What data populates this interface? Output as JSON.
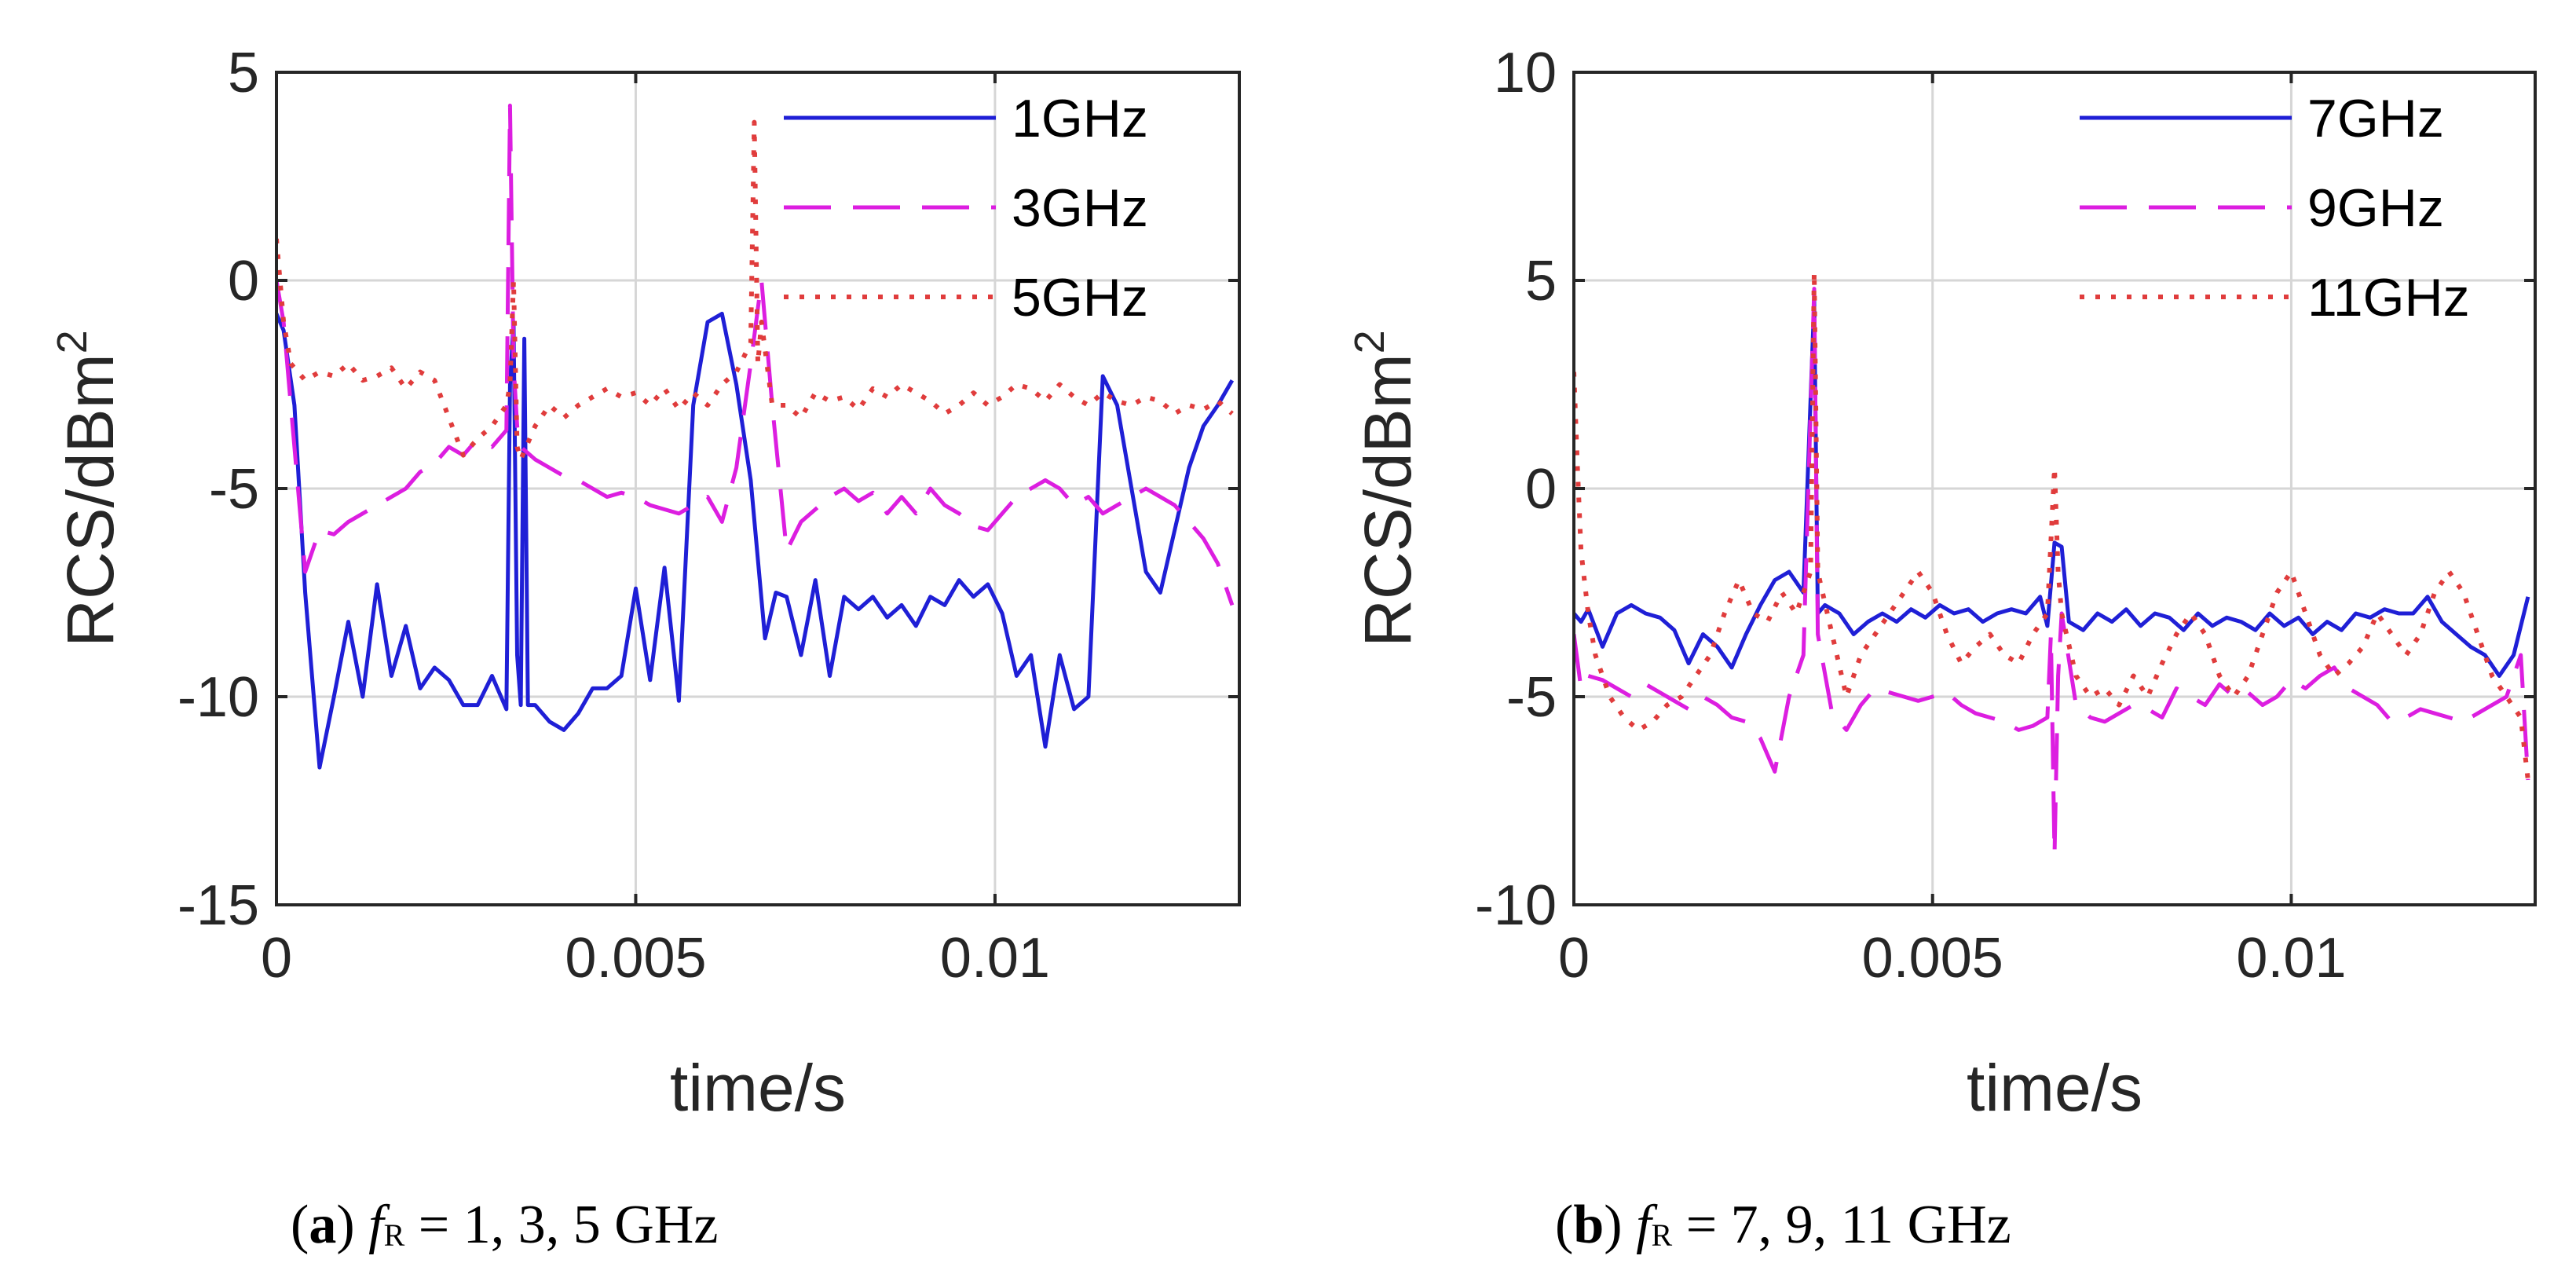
{
  "chart_data": [
    {
      "type": "line",
      "panel": "a",
      "xlabel": "time/s",
      "ylabel": "RCS/dBm",
      "ylabel_sup": "2",
      "xlim": [
        0,
        0.0134
      ],
      "ylim": [
        -15,
        5
      ],
      "xticks": [
        0,
        0.005,
        0.01
      ],
      "xtick_labels": [
        "0",
        "0.005",
        "0.01"
      ],
      "yticks": [
        -15,
        -10,
        -5,
        0,
        5
      ],
      "ytick_labels": [
        "-15",
        "-10",
        "-5",
        "0",
        "5"
      ],
      "grid": true,
      "legend_position": "top-right",
      "series": [
        {
          "name": "1GHz",
          "color": "#1f1fd6",
          "dash": "solid",
          "x": [
            0,
            0.0001,
            0.00025,
            0.0004,
            0.0006,
            0.0008,
            0.001,
            0.0012,
            0.0014,
            0.0016,
            0.0018,
            0.002,
            0.0022,
            0.0024,
            0.0026,
            0.0028,
            0.003,
            0.0032,
            0.00325,
            0.0033,
            0.00335,
            0.0034,
            0.00345,
            0.0035,
            0.0036,
            0.0038,
            0.004,
            0.0042,
            0.0044,
            0.0046,
            0.0048,
            0.005,
            0.0052,
            0.0054,
            0.0056,
            0.0058,
            0.006,
            0.0062,
            0.0064,
            0.0066,
            0.0068,
            0.00695,
            0.0071,
            0.0073,
            0.0075,
            0.0077,
            0.0079,
            0.0081,
            0.0083,
            0.0085,
            0.0087,
            0.0089,
            0.0091,
            0.0093,
            0.0095,
            0.0097,
            0.0099,
            0.0101,
            0.0103,
            0.0105,
            0.0107,
            0.0109,
            0.0111,
            0.0113,
            0.0115,
            0.0117,
            0.0119,
            0.0121,
            0.0123,
            0.0125,
            0.0127,
            0.0129,
            0.0131,
            0.0133
          ],
          "y": [
            -0.8,
            -1.2,
            -3.0,
            -7.5,
            -11.7,
            -10.0,
            -8.2,
            -10.0,
            -7.3,
            -9.5,
            -8.3,
            -9.8,
            -9.3,
            -9.6,
            -10.2,
            -10.2,
            -9.5,
            -10.3,
            -2.5,
            -1.0,
            -9.0,
            -10.2,
            -1.4,
            -10.2,
            -10.2,
            -10.6,
            -10.8,
            -10.4,
            -9.8,
            -9.8,
            -9.5,
            -7.4,
            -9.6,
            -6.9,
            -10.1,
            -3.0,
            -1.0,
            -0.8,
            -2.5,
            -4.8,
            -8.6,
            -7.5,
            -7.6,
            -9.0,
            -7.2,
            -9.5,
            -7.6,
            -7.9,
            -7.6,
            -8.1,
            -7.8,
            -8.3,
            -7.6,
            -7.8,
            -7.2,
            -7.6,
            -7.3,
            -8.0,
            -9.5,
            -9.0,
            -11.2,
            -9.0,
            -10.3,
            -10.0,
            -2.3,
            -3.0,
            -5.0,
            -7.0,
            -7.5,
            -6.0,
            -4.5,
            -3.5,
            -3.0,
            -2.4
          ]
        },
        {
          "name": "3GHz",
          "color": "#dc1ee0",
          "dash": "dashed",
          "x": [
            0,
            0.0001,
            0.0002,
            0.0004,
            0.0006,
            0.0008,
            0.001,
            0.0012,
            0.0014,
            0.0016,
            0.0018,
            0.002,
            0.0022,
            0.0024,
            0.0026,
            0.0028,
            0.003,
            0.0032,
            0.00325,
            0.0033,
            0.00335,
            0.0034,
            0.0036,
            0.0038,
            0.004,
            0.0042,
            0.0044,
            0.0046,
            0.0048,
            0.005,
            0.0052,
            0.0054,
            0.0056,
            0.0058,
            0.006,
            0.0062,
            0.0064,
            0.0066,
            0.00675,
            0.0069,
            0.0071,
            0.0073,
            0.0075,
            0.0077,
            0.0079,
            0.0081,
            0.0083,
            0.0085,
            0.0087,
            0.0089,
            0.0091,
            0.0093,
            0.0095,
            0.0097,
            0.0099,
            0.0101,
            0.0103,
            0.0105,
            0.0107,
            0.0109,
            0.0111,
            0.0113,
            0.0115,
            0.0117,
            0.0119,
            0.0121,
            0.0123,
            0.0125,
            0.0127,
            0.0129,
            0.0131,
            0.0133
          ],
          "y": [
            0.0,
            -1.0,
            -3.0,
            -7.0,
            -6.0,
            -6.1,
            -5.8,
            -5.6,
            -5.4,
            -5.2,
            -5.0,
            -4.6,
            -4.4,
            -4.0,
            -4.2,
            -3.8,
            -4.0,
            -3.6,
            4.2,
            -2.0,
            -3.5,
            -4.0,
            -4.3,
            -4.5,
            -4.7,
            -4.8,
            -5.0,
            -5.2,
            -5.1,
            -5.2,
            -5.4,
            -5.5,
            -5.6,
            -5.4,
            -5.2,
            -5.8,
            -4.5,
            -2.0,
            0.0,
            -3.0,
            -6.5,
            -5.8,
            -5.5,
            -5.2,
            -5.0,
            -5.3,
            -5.1,
            -5.6,
            -5.2,
            -5.6,
            -5.0,
            -5.4,
            -5.6,
            -5.9,
            -6.0,
            -5.6,
            -5.2,
            -5.0,
            -4.8,
            -5.0,
            -5.4,
            -5.2,
            -5.6,
            -5.4,
            -5.2,
            -5.0,
            -5.2,
            -5.4,
            -5.8,
            -6.2,
            -6.8,
            -7.8
          ]
        },
        {
          "name": "5GHz",
          "color": "#e03c3c",
          "dash": "dotted",
          "x": [
            0,
            0.0001,
            0.0002,
            0.0004,
            0.0006,
            0.0008,
            0.001,
            0.0012,
            0.0014,
            0.0016,
            0.0018,
            0.002,
            0.0022,
            0.0024,
            0.0026,
            0.0028,
            0.003,
            0.0032,
            0.00325,
            0.0033,
            0.00335,
            0.0034,
            0.0036,
            0.0038,
            0.004,
            0.0042,
            0.0044,
            0.0046,
            0.0048,
            0.005,
            0.0052,
            0.0054,
            0.0056,
            0.0058,
            0.006,
            0.0062,
            0.0064,
            0.0066,
            0.00665,
            0.0067,
            0.00675,
            0.0069,
            0.0071,
            0.0073,
            0.0075,
            0.0077,
            0.0079,
            0.0081,
            0.0083,
            0.0085,
            0.0087,
            0.0089,
            0.0091,
            0.0093,
            0.0095,
            0.0097,
            0.0099,
            0.0101,
            0.0103,
            0.0105,
            0.0107,
            0.0109,
            0.0111,
            0.0113,
            0.0115,
            0.0117,
            0.0119,
            0.0121,
            0.0123,
            0.0125,
            0.0127,
            0.0129,
            0.0131,
            0.0133
          ],
          "y": [
            1.0,
            -1.0,
            -2.0,
            -2.4,
            -2.2,
            -2.3,
            -2.0,
            -2.4,
            -2.3,
            -2.1,
            -2.6,
            -2.2,
            -2.4,
            -3.3,
            -4.2,
            -3.8,
            -3.5,
            -3.0,
            -2.5,
            0.0,
            -4.0,
            -4.3,
            -3.5,
            -3.0,
            -3.3,
            -3.0,
            -2.8,
            -2.6,
            -2.8,
            -2.7,
            -3.0,
            -2.6,
            -3.1,
            -2.7,
            -3.0,
            -2.5,
            -2.2,
            -1.5,
            3.8,
            -2.0,
            -1.0,
            -3.0,
            -3.0,
            -3.3,
            -2.7,
            -2.9,
            -2.8,
            -3.1,
            -2.6,
            -2.8,
            -2.5,
            -2.7,
            -2.9,
            -3.2,
            -3.0,
            -2.7,
            -3.0,
            -2.8,
            -2.5,
            -2.6,
            -2.9,
            -2.5,
            -2.8,
            -3.0,
            -2.7,
            -2.9,
            -3.0,
            -2.8,
            -2.9,
            -3.2,
            -3.0,
            -3.1,
            -2.9,
            -3.2
          ]
        }
      ]
    },
    {
      "type": "line",
      "panel": "b",
      "xlabel": "time/s",
      "ylabel": "RCS/dBm",
      "ylabel_sup": "2",
      "xlim": [
        0,
        0.0134
      ],
      "ylim": [
        -10,
        10
      ],
      "xticks": [
        0,
        0.005,
        0.01
      ],
      "xtick_labels": [
        "0",
        "0.005",
        "0.01"
      ],
      "yticks": [
        -10,
        -5,
        0,
        5,
        10
      ],
      "ytick_labels": [
        "-10",
        "-5",
        "0",
        "5",
        "10"
      ],
      "grid": true,
      "legend_position": "top-right",
      "series": [
        {
          "name": "7GHz",
          "color": "#1f1fd6",
          "dash": "solid",
          "x": [
            0,
            0.0001,
            0.0002,
            0.0004,
            0.0006,
            0.0008,
            0.001,
            0.0012,
            0.0014,
            0.0016,
            0.0018,
            0.002,
            0.0022,
            0.0024,
            0.0026,
            0.0028,
            0.003,
            0.0032,
            0.00335,
            0.0034,
            0.0035,
            0.0037,
            0.0039,
            0.0041,
            0.0043,
            0.0045,
            0.0047,
            0.0049,
            0.0051,
            0.0053,
            0.0055,
            0.0057,
            0.0059,
            0.0061,
            0.0063,
            0.0065,
            0.0066,
            0.0067,
            0.0068,
            0.0069,
            0.0071,
            0.0073,
            0.0075,
            0.0077,
            0.0079,
            0.0081,
            0.0083,
            0.0085,
            0.0087,
            0.0089,
            0.0091,
            0.0093,
            0.0095,
            0.0097,
            0.0099,
            0.0101,
            0.0103,
            0.0105,
            0.0107,
            0.0109,
            0.0111,
            0.0113,
            0.0115,
            0.0117,
            0.0119,
            0.0121,
            0.0123,
            0.0125,
            0.0127,
            0.0129,
            0.0131,
            0.0133
          ],
          "y": [
            -3.0,
            -3.2,
            -2.9,
            -3.8,
            -3.0,
            -2.8,
            -3.0,
            -3.1,
            -3.4,
            -4.2,
            -3.5,
            -3.8,
            -4.3,
            -3.5,
            -2.8,
            -2.2,
            -2.0,
            -2.5,
            4.5,
            -3.0,
            -2.8,
            -3.0,
            -3.5,
            -3.2,
            -3.0,
            -3.2,
            -2.9,
            -3.1,
            -2.8,
            -3.0,
            -2.9,
            -3.2,
            -3.0,
            -2.9,
            -3.0,
            -2.6,
            -3.3,
            -1.3,
            -1.4,
            -3.2,
            -3.4,
            -3.0,
            -3.2,
            -2.9,
            -3.3,
            -3.0,
            -3.1,
            -3.4,
            -3.0,
            -3.3,
            -3.1,
            -3.2,
            -3.4,
            -3.0,
            -3.3,
            -3.1,
            -3.5,
            -3.2,
            -3.4,
            -3.0,
            -3.1,
            -2.9,
            -3.0,
            -3.0,
            -2.6,
            -3.2,
            -3.5,
            -3.8,
            -4.0,
            -4.5,
            -4.0,
            -2.6
          ]
        },
        {
          "name": "9GHz",
          "color": "#dc1ee0",
          "dash": "dashed",
          "x": [
            0,
            0.0001,
            0.0002,
            0.0004,
            0.0006,
            0.0008,
            0.001,
            0.0012,
            0.0014,
            0.0016,
            0.0018,
            0.002,
            0.0022,
            0.0024,
            0.0026,
            0.0028,
            0.003,
            0.0032,
            0.00335,
            0.0034,
            0.0036,
            0.0038,
            0.004,
            0.0042,
            0.0044,
            0.0046,
            0.0048,
            0.005,
            0.0052,
            0.0054,
            0.0056,
            0.0058,
            0.006,
            0.0062,
            0.0064,
            0.0066,
            0.00665,
            0.0067,
            0.00675,
            0.0068,
            0.007,
            0.0072,
            0.0074,
            0.0076,
            0.0078,
            0.008,
            0.0082,
            0.0084,
            0.0086,
            0.0088,
            0.009,
            0.0092,
            0.0094,
            0.0096,
            0.0098,
            0.01,
            0.0102,
            0.0104,
            0.0106,
            0.0108,
            0.011,
            0.0112,
            0.0114,
            0.0116,
            0.0118,
            0.012,
            0.0122,
            0.0124,
            0.0126,
            0.0128,
            0.013,
            0.0132,
            0.0133
          ],
          "y": [
            -3.5,
            -4.8,
            -4.5,
            -4.6,
            -4.8,
            -5.0,
            -4.7,
            -4.9,
            -5.1,
            -5.3,
            -5.0,
            -5.2,
            -5.5,
            -5.6,
            -6.0,
            -6.8,
            -5.0,
            -4.0,
            4.8,
            -3.5,
            -5.4,
            -5.8,
            -5.2,
            -4.8,
            -4.9,
            -5.0,
            -5.1,
            -5.0,
            -4.9,
            -5.2,
            -5.4,
            -5.5,
            -5.6,
            -5.8,
            -5.7,
            -5.5,
            -3.5,
            -8.8,
            -4.5,
            -3.0,
            -5.2,
            -5.5,
            -5.6,
            -5.4,
            -5.2,
            -5.3,
            -5.5,
            -4.8,
            -5.0,
            -5.2,
            -4.7,
            -5.0,
            -4.9,
            -5.2,
            -5.0,
            -4.6,
            -4.8,
            -4.5,
            -4.3,
            -4.8,
            -5.0,
            -5.2,
            -5.6,
            -5.5,
            -5.3,
            -5.4,
            -5.5,
            -5.6,
            -5.4,
            -5.2,
            -5.0,
            -4.0,
            -7.0
          ]
        },
        {
          "name": "11GHz",
          "color": "#e03c3c",
          "dash": "dotted",
          "x": [
            0,
            5e-05,
            0.0001,
            0.0002,
            0.0003,
            0.0005,
            0.0007,
            0.0009,
            0.0011,
            0.0013,
            0.0015,
            0.0017,
            0.0019,
            0.0021,
            0.0023,
            0.0025,
            0.0027,
            0.0029,
            0.0031,
            0.0033,
            0.00335,
            0.0034,
            0.0036,
            0.0038,
            0.004,
            0.0042,
            0.0044,
            0.0046,
            0.0048,
            0.005,
            0.0052,
            0.0054,
            0.0056,
            0.0058,
            0.006,
            0.0062,
            0.0064,
            0.0066,
            0.0067,
            0.00675,
            0.0068,
            0.007,
            0.0072,
            0.0074,
            0.0076,
            0.0078,
            0.008,
            0.0082,
            0.0084,
            0.0086,
            0.0088,
            0.009,
            0.0092,
            0.0094,
            0.0096,
            0.0098,
            0.01,
            0.0102,
            0.0104,
            0.0106,
            0.0108,
            0.011,
            0.0112,
            0.0114,
            0.0116,
            0.0118,
            0.012,
            0.0122,
            0.0124,
            0.0126,
            0.0128,
            0.013,
            0.0132,
            0.0133
          ],
          "y": [
            2.8,
            0.5,
            -1.5,
            -3.0,
            -4.0,
            -5.0,
            -5.5,
            -5.8,
            -5.6,
            -5.2,
            -5.0,
            -4.5,
            -4.0,
            -3.0,
            -2.2,
            -3.0,
            -3.2,
            -2.5,
            -3.0,
            -2.0,
            5.2,
            -2.0,
            -3.5,
            -5.0,
            -4.0,
            -3.5,
            -3.0,
            -2.5,
            -2.0,
            -2.5,
            -3.5,
            -4.2,
            -3.8,
            -3.5,
            -4.0,
            -4.2,
            -3.5,
            -3.0,
            0.5,
            -2.0,
            -3.0,
            -4.5,
            -5.0,
            -4.8,
            -5.2,
            -4.5,
            -5.0,
            -4.2,
            -3.5,
            -3.0,
            -3.5,
            -4.5,
            -5.0,
            -4.5,
            -3.5,
            -2.5,
            -2.0,
            -3.0,
            -4.0,
            -4.5,
            -4.2,
            -3.8,
            -3.0,
            -3.5,
            -4.0,
            -3.5,
            -2.5,
            -2.0,
            -2.5,
            -3.5,
            -4.5,
            -5.0,
            -5.5,
            -7.0
          ]
        }
      ]
    }
  ],
  "captions": {
    "a": {
      "label": "a",
      "prefix": "(",
      "mid": ") ",
      "f": "f",
      "sub": "R",
      "rest": " = 1, 3, 5 GHz"
    },
    "b": {
      "label": "b",
      "prefix": "(",
      "mid": ") ",
      "f": "f",
      "sub": "R",
      "rest": " = 7, 9, 11 GHz"
    }
  }
}
